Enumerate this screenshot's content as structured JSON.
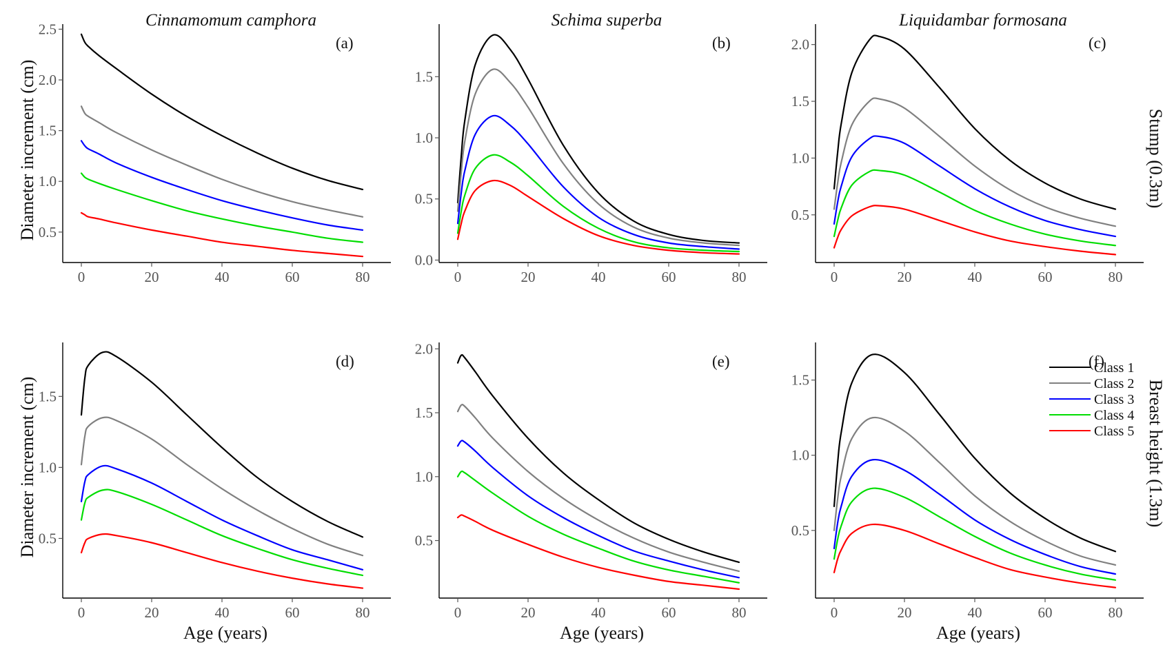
{
  "figure": {
    "column_titles": [
      "Cinnamomum camphora",
      "Schima superba",
      "Liquidambar formosana"
    ],
    "row_titles": [
      "Stump (0.3m)",
      "Breast height (1.3m)"
    ],
    "ylabel": "Diameter increment (cm)",
    "xlabel": "Age (years)",
    "legend": [
      {
        "label": "Class 1",
        "color": "#000000"
      },
      {
        "label": "Class 2",
        "color": "#808080"
      },
      {
        "label": "Class 3",
        "color": "#0000ff"
      },
      {
        "label": "Class 4",
        "color": "#00dd00"
      },
      {
        "label": "Class 5",
        "color": "#ff0000"
      }
    ]
  },
  "chart_data": [
    {
      "type": "line",
      "panel": "(a)",
      "title": "Cinnamomum camphora",
      "xlim": [
        0,
        80
      ],
      "ylim": [
        0.2,
        2.55
      ],
      "xticks": [
        0,
        20,
        40,
        60,
        80
      ],
      "yticks": [
        0.5,
        1.0,
        1.5,
        2.0,
        2.5
      ],
      "ytick_labels": [
        "0.5",
        "1.0",
        "1.5",
        "2.0",
        "2.5"
      ],
      "x": [
        0,
        1,
        2,
        5,
        10,
        20,
        30,
        40,
        50,
        60,
        70,
        80
      ],
      "series": [
        {
          "name": "Class 1",
          "color": "#000000",
          "values": [
            2.45,
            2.37,
            2.33,
            2.24,
            2.11,
            1.86,
            1.64,
            1.45,
            1.28,
            1.13,
            1.01,
            0.92
          ]
        },
        {
          "name": "Class 2",
          "color": "#808080",
          "values": [
            1.74,
            1.67,
            1.64,
            1.58,
            1.48,
            1.31,
            1.16,
            1.02,
            0.9,
            0.8,
            0.72,
            0.65
          ]
        },
        {
          "name": "Class 3",
          "color": "#0000ff",
          "values": [
            1.4,
            1.35,
            1.32,
            1.27,
            1.18,
            1.04,
            0.92,
            0.81,
            0.72,
            0.64,
            0.57,
            0.52
          ]
        },
        {
          "name": "Class 4",
          "color": "#00dd00",
          "values": [
            1.08,
            1.04,
            1.02,
            0.98,
            0.92,
            0.81,
            0.71,
            0.63,
            0.56,
            0.5,
            0.44,
            0.4
          ]
        },
        {
          "name": "Class 5",
          "color": "#ff0000",
          "values": [
            0.69,
            0.67,
            0.65,
            0.63,
            0.59,
            0.52,
            0.46,
            0.4,
            0.36,
            0.32,
            0.29,
            0.26
          ]
        }
      ]
    },
    {
      "type": "line",
      "panel": "(b)",
      "title": "Schima superba",
      "xlim": [
        0,
        80
      ],
      "ylim": [
        -0.02,
        1.93
      ],
      "xticks": [
        0,
        20,
        40,
        60,
        80
      ],
      "yticks": [
        0.0,
        0.5,
        1.0,
        1.5
      ],
      "ytick_labels": [
        "0.0",
        "0.5",
        "1.0",
        "1.5"
      ],
      "x": [
        0,
        1,
        2,
        5,
        10,
        15,
        20,
        30,
        40,
        50,
        60,
        70,
        80
      ],
      "series": [
        {
          "name": "Class 1",
          "color": "#000000",
          "values": [
            0.47,
            0.85,
            1.14,
            1.6,
            1.84,
            1.72,
            1.48,
            0.94,
            0.55,
            0.32,
            0.21,
            0.16,
            0.14
          ]
        },
        {
          "name": "Class 2",
          "color": "#808080",
          "values": [
            0.4,
            0.72,
            0.97,
            1.36,
            1.56,
            1.45,
            1.25,
            0.79,
            0.46,
            0.27,
            0.18,
            0.14,
            0.12
          ]
        },
        {
          "name": "Class 3",
          "color": "#0000ff",
          "values": [
            0.3,
            0.55,
            0.73,
            1.03,
            1.18,
            1.1,
            0.95,
            0.6,
            0.35,
            0.21,
            0.14,
            0.11,
            0.09
          ]
        },
        {
          "name": "Class 4",
          "color": "#00dd00",
          "values": [
            0.22,
            0.4,
            0.53,
            0.75,
            0.86,
            0.8,
            0.69,
            0.44,
            0.26,
            0.15,
            0.1,
            0.08,
            0.07
          ]
        },
        {
          "name": "Class 5",
          "color": "#ff0000",
          "values": [
            0.17,
            0.3,
            0.4,
            0.57,
            0.65,
            0.61,
            0.52,
            0.34,
            0.2,
            0.12,
            0.08,
            0.06,
            0.05
          ]
        }
      ]
    },
    {
      "type": "line",
      "panel": "(c)",
      "title": "Liquidambar formosana",
      "xlim": [
        0,
        80
      ],
      "ylim": [
        0.08,
        2.18
      ],
      "xticks": [
        0,
        20,
        40,
        60,
        80
      ],
      "yticks": [
        0.5,
        1.0,
        1.5,
        2.0
      ],
      "ytick_labels": [
        "0.5",
        "1.0",
        "1.5",
        "2.0"
      ],
      "x": [
        0,
        1,
        2,
        5,
        10,
        13,
        20,
        30,
        40,
        50,
        60,
        70,
        80
      ],
      "series": [
        {
          "name": "Class 1",
          "color": "#000000",
          "values": [
            0.73,
            1.05,
            1.3,
            1.75,
            2.04,
            2.07,
            1.96,
            1.62,
            1.26,
            0.98,
            0.78,
            0.64,
            0.55
          ]
        },
        {
          "name": "Class 2",
          "color": "#808080",
          "values": [
            0.55,
            0.78,
            0.96,
            1.29,
            1.5,
            1.52,
            1.44,
            1.19,
            0.93,
            0.72,
            0.57,
            0.47,
            0.4
          ]
        },
        {
          "name": "Class 3",
          "color": "#0000ff",
          "values": [
            0.42,
            0.61,
            0.75,
            1.01,
            1.17,
            1.19,
            1.13,
            0.93,
            0.73,
            0.57,
            0.45,
            0.37,
            0.31
          ]
        },
        {
          "name": "Class 4",
          "color": "#00dd00",
          "values": [
            0.31,
            0.45,
            0.56,
            0.76,
            0.88,
            0.89,
            0.85,
            0.7,
            0.54,
            0.42,
            0.33,
            0.27,
            0.23
          ]
        },
        {
          "name": "Class 5",
          "color": "#ff0000",
          "values": [
            0.21,
            0.3,
            0.37,
            0.49,
            0.57,
            0.58,
            0.55,
            0.45,
            0.35,
            0.27,
            0.22,
            0.18,
            0.15
          ]
        }
      ]
    },
    {
      "type": "line",
      "panel": "(d)",
      "title": "",
      "xlim": [
        0,
        80
      ],
      "ylim": [
        0.08,
        1.88
      ],
      "xticks": [
        0,
        20,
        40,
        60,
        80
      ],
      "yticks": [
        0.5,
        1.0,
        1.5
      ],
      "ytick_labels": [
        "0.5",
        "1.0",
        "1.5"
      ],
      "x": [
        0,
        1,
        2,
        6,
        10,
        20,
        30,
        40,
        50,
        60,
        70,
        80
      ],
      "series": [
        {
          "name": "Class 1",
          "color": "#000000",
          "values": [
            1.37,
            1.63,
            1.72,
            1.81,
            1.78,
            1.6,
            1.37,
            1.14,
            0.93,
            0.76,
            0.62,
            0.51
          ]
        },
        {
          "name": "Class 2",
          "color": "#808080",
          "values": [
            1.02,
            1.22,
            1.29,
            1.35,
            1.33,
            1.2,
            1.02,
            0.85,
            0.7,
            0.57,
            0.46,
            0.38
          ]
        },
        {
          "name": "Class 3",
          "color": "#0000ff",
          "values": [
            0.76,
            0.9,
            0.95,
            1.01,
            0.99,
            0.89,
            0.76,
            0.63,
            0.52,
            0.42,
            0.35,
            0.28
          ]
        },
        {
          "name": "Class 4",
          "color": "#00dd00",
          "values": [
            0.63,
            0.75,
            0.79,
            0.84,
            0.83,
            0.74,
            0.63,
            0.52,
            0.43,
            0.35,
            0.29,
            0.24
          ]
        },
        {
          "name": "Class 5",
          "color": "#ff0000",
          "values": [
            0.4,
            0.47,
            0.5,
            0.53,
            0.52,
            0.47,
            0.4,
            0.33,
            0.27,
            0.22,
            0.18,
            0.15
          ]
        }
      ]
    },
    {
      "type": "line",
      "panel": "(e)",
      "title": "",
      "xlim": [
        0,
        80
      ],
      "ylim": [
        0.05,
        2.05
      ],
      "xticks": [
        0,
        20,
        40,
        60,
        80
      ],
      "yticks": [
        0.5,
        1.0,
        1.5,
        2.0
      ],
      "ytick_labels": [
        "0.5",
        "1.0",
        "1.5",
        "2.0"
      ],
      "x": [
        0,
        1,
        2,
        5,
        10,
        20,
        30,
        40,
        50,
        60,
        70,
        80
      ],
      "series": [
        {
          "name": "Class 1",
          "color": "#000000",
          "values": [
            1.89,
            1.95,
            1.93,
            1.82,
            1.63,
            1.3,
            1.03,
            0.82,
            0.64,
            0.51,
            0.41,
            0.33
          ]
        },
        {
          "name": "Class 2",
          "color": "#808080",
          "values": [
            1.51,
            1.56,
            1.55,
            1.46,
            1.3,
            1.04,
            0.83,
            0.66,
            0.52,
            0.41,
            0.33,
            0.26
          ]
        },
        {
          "name": "Class 3",
          "color": "#0000ff",
          "values": [
            1.24,
            1.28,
            1.27,
            1.2,
            1.07,
            0.85,
            0.68,
            0.54,
            0.42,
            0.34,
            0.27,
            0.21
          ]
        },
        {
          "name": "Class 4",
          "color": "#00dd00",
          "values": [
            1.0,
            1.04,
            1.03,
            0.97,
            0.87,
            0.69,
            0.55,
            0.44,
            0.34,
            0.27,
            0.22,
            0.17
          ]
        },
        {
          "name": "Class 5",
          "color": "#ff0000",
          "values": [
            0.68,
            0.7,
            0.69,
            0.65,
            0.58,
            0.47,
            0.37,
            0.29,
            0.23,
            0.18,
            0.15,
            0.12
          ]
        }
      ]
    },
    {
      "type": "line",
      "panel": "(f)",
      "title": "",
      "xlim": [
        0,
        80
      ],
      "ylim": [
        0.05,
        1.75
      ],
      "xticks": [
        0,
        20,
        40,
        60,
        80
      ],
      "yticks": [
        0.5,
        1.0,
        1.5
      ],
      "ytick_labels": [
        "0.5",
        "1.0",
        "1.5"
      ],
      "x": [
        0,
        1,
        2,
        5,
        11,
        20,
        30,
        40,
        50,
        60,
        70,
        80
      ],
      "series": [
        {
          "name": "Class 1",
          "color": "#000000",
          "values": [
            0.66,
            0.95,
            1.15,
            1.48,
            1.67,
            1.55,
            1.27,
            0.98,
            0.75,
            0.58,
            0.45,
            0.36
          ]
        },
        {
          "name": "Class 2",
          "color": "#808080",
          "values": [
            0.5,
            0.71,
            0.86,
            1.11,
            1.25,
            1.16,
            0.95,
            0.73,
            0.56,
            0.43,
            0.33,
            0.27
          ]
        },
        {
          "name": "Class 3",
          "color": "#0000ff",
          "values": [
            0.38,
            0.55,
            0.66,
            0.86,
            0.97,
            0.9,
            0.74,
            0.57,
            0.44,
            0.34,
            0.26,
            0.21
          ]
        },
        {
          "name": "Class 4",
          "color": "#00dd00",
          "values": [
            0.31,
            0.44,
            0.53,
            0.69,
            0.78,
            0.72,
            0.59,
            0.46,
            0.35,
            0.27,
            0.21,
            0.17
          ]
        },
        {
          "name": "Class 5",
          "color": "#ff0000",
          "values": [
            0.22,
            0.31,
            0.37,
            0.48,
            0.54,
            0.5,
            0.41,
            0.32,
            0.24,
            0.19,
            0.15,
            0.12
          ]
        }
      ]
    }
  ]
}
